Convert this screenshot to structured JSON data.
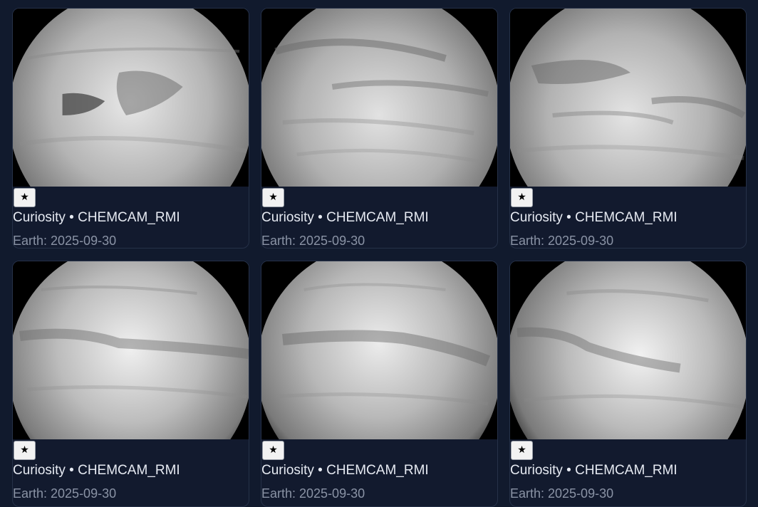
{
  "gallery": {
    "cards": [
      {
        "fav_icon": "star-icon",
        "fav_label": "★",
        "title": "Curiosity • CHEMCAM_RMI",
        "date": "Earth: 2025-09-30"
      },
      {
        "fav_icon": "star-icon",
        "fav_label": "★",
        "title": "Curiosity • CHEMCAM_RMI",
        "date": "Earth: 2025-09-30"
      },
      {
        "fav_icon": "star-icon",
        "fav_label": "★",
        "title": "Curiosity • CHEMCAM_RMI",
        "date": "Earth: 2025-09-30"
      },
      {
        "fav_icon": "star-icon",
        "fav_label": "★",
        "title": "Curiosity • CHEMCAM_RMI",
        "date": "Earth: 2025-09-30"
      },
      {
        "fav_icon": "star-icon",
        "fav_label": "★",
        "title": "Curiosity • CHEMCAM_RMI",
        "date": "Earth: 2025-09-30"
      },
      {
        "fav_icon": "star-icon",
        "fav_label": "★",
        "title": "Curiosity • CHEMCAM_RMI",
        "date": "Earth: 2025-09-30"
      }
    ]
  },
  "colors": {
    "page_background": "#111a2d",
    "card_border": "#263148",
    "title_text": "#e6eaf2",
    "date_text": "#8a93a5"
  }
}
